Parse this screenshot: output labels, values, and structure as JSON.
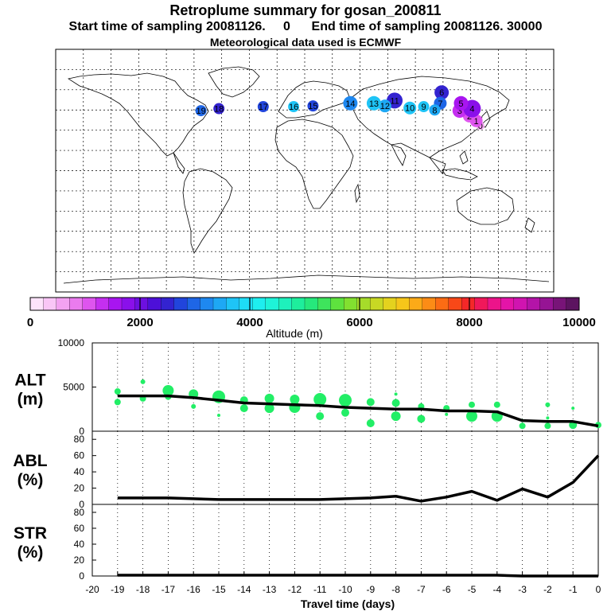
{
  "header": {
    "title": "Retroplume summary for gosan_200811",
    "sampling_line": "Start time of sampling 20081126.     0      End time of sampling 20081126. 30000",
    "meteo_line": "Meteorological data used is ECMWF"
  },
  "colorbar": {
    "label": "Altitude (m)",
    "ticks": [
      "0",
      "2000",
      "4000",
      "6000",
      "8000",
      "10000"
    ],
    "colors": [
      "#fde3fb",
      "#f9c6f6",
      "#f3a2f1",
      "#ea7bee",
      "#de55ee",
      "#c52ff0",
      "#a815f0",
      "#8a10ea",
      "#6d10e0",
      "#4d10d8",
      "#3323d0",
      "#2145dc",
      "#1e66e6",
      "#1e88f0",
      "#1ea8f4",
      "#1ec4f6",
      "#1edcf6",
      "#1eeeef",
      "#1ef3d8",
      "#1ef1bc",
      "#1eee9c",
      "#26e87c",
      "#3ee45c",
      "#5ee23e",
      "#82e030",
      "#a6dc2a",
      "#c8d824",
      "#e4d21e",
      "#f6c61a",
      "#fcaa18",
      "#fc8c16",
      "#fc6c14",
      "#f84818",
      "#f42828",
      "#f0185a",
      "#ec148a",
      "#e414a8",
      "#d014b0",
      "#b414a8",
      "#961494",
      "#781478",
      "#5c1460"
    ]
  },
  "map_markers": [
    {
      "label": "0",
      "lon": 127,
      "lat": 33.3,
      "alt": 600,
      "size": 5
    },
    {
      "label": "1",
      "lon": 124,
      "lat": 37,
      "alt": 1100,
      "size": 8
    },
    {
      "label": "2",
      "lon": 119,
      "lat": 40.5,
      "alt": 1100,
      "size": 8
    },
    {
      "label": "3",
      "lon": 112,
      "lat": 44.5,
      "alt": 1200,
      "size": 9
    },
    {
      "label": "4",
      "lon": 121,
      "lat": 46,
      "alt": 1800,
      "size": 11
    },
    {
      "label": "5",
      "lon": 113,
      "lat": 50,
      "alt": 1500,
      "size": 9
    },
    {
      "label": "6",
      "lon": 99,
      "lat": 58,
      "alt": 2600,
      "size": 9
    },
    {
      "label": "7",
      "lon": 98,
      "lat": 50,
      "alt": 3000,
      "size": 8
    },
    {
      "label": "8",
      "lon": 94,
      "lat": 45,
      "alt": 3400,
      "size": 7
    },
    {
      "label": "9",
      "lon": 86,
      "lat": 47.5,
      "alt": 3600,
      "size": 7
    },
    {
      "label": "10",
      "lon": 76,
      "lat": 46.5,
      "alt": 3700,
      "size": 8
    },
    {
      "label": "11",
      "lon": 65,
      "lat": 52,
      "alt": 2400,
      "size": 10
    },
    {
      "label": "12",
      "lon": 58,
      "lat": 48,
      "alt": 3500,
      "size": 8
    },
    {
      "label": "13",
      "lon": 50,
      "lat": 50,
      "alt": 3800,
      "size": 9
    },
    {
      "label": "14",
      "lon": 33,
      "lat": 50,
      "alt": 3200,
      "size": 9
    },
    {
      "label": "15",
      "lon": 6,
      "lat": 48,
      "alt": 2800,
      "size": 7
    },
    {
      "label": "16",
      "lon": -8,
      "lat": 47.5,
      "alt": 3700,
      "size": 7
    },
    {
      "label": "17",
      "lon": -30,
      "lat": 47.5,
      "alt": 2800,
      "size": 7
    },
    {
      "label": "18",
      "lon": -62,
      "lat": 46,
      "alt": 2500,
      "size": 7
    },
    {
      "label": "19",
      "lon": -75,
      "lat": 44.5,
      "alt": 3000,
      "size": 7
    }
  ],
  "map_grid": {
    "lon_min": -180,
    "lon_max": 180,
    "lat_min": -90,
    "lat_max": 90,
    "lon_step": 20,
    "lat_step": 15
  },
  "chart_data": [
    {
      "type": "line",
      "id": "alt",
      "ylabel": [
        "ALT",
        "(m)"
      ],
      "ylim": [
        0,
        10000
      ],
      "yticks": [
        "0",
        "5000",
        "10000"
      ],
      "x": [
        -19,
        -18,
        -17,
        -16,
        -15,
        -14,
        -13,
        -12,
        -11,
        -10,
        -9,
        -8,
        -7,
        -6,
        -5,
        -4,
        -3,
        -2,
        -1,
        0
      ],
      "values": [
        4000,
        4000,
        4000,
        3800,
        3500,
        3200,
        3100,
        3000,
        2900,
        2700,
        2600,
        2500,
        2500,
        2300,
        2300,
        2200,
        1200,
        1100,
        1100,
        600
      ],
      "scatter_points": [
        {
          "x": -19,
          "y": 4500,
          "s": 4
        },
        {
          "x": -19,
          "y": 3300,
          "s": 4
        },
        {
          "x": -18,
          "y": 5600,
          "s": 3
        },
        {
          "x": -18,
          "y": 3700,
          "s": 4
        },
        {
          "x": -17,
          "y": 4600,
          "s": 7
        },
        {
          "x": -17,
          "y": 3900,
          "s": 4
        },
        {
          "x": -16,
          "y": 4200,
          "s": 6
        },
        {
          "x": -16,
          "y": 2800,
          "s": 3
        },
        {
          "x": -15,
          "y": 3900,
          "s": 8
        },
        {
          "x": -15,
          "y": 1800,
          "s": 2
        },
        {
          "x": -14,
          "y": 3500,
          "s": 5
        },
        {
          "x": -14,
          "y": 2600,
          "s": 5
        },
        {
          "x": -13,
          "y": 3700,
          "s": 6
        },
        {
          "x": -13,
          "y": 2600,
          "s": 6
        },
        {
          "x": -12,
          "y": 3600,
          "s": 6
        },
        {
          "x": -12,
          "y": 2700,
          "s": 7
        },
        {
          "x": -11,
          "y": 3600,
          "s": 8
        },
        {
          "x": -11,
          "y": 1700,
          "s": 5
        },
        {
          "x": -10,
          "y": 3500,
          "s": 8
        },
        {
          "x": -10,
          "y": 2100,
          "s": 5
        },
        {
          "x": -9,
          "y": 3300,
          "s": 5
        },
        {
          "x": -9,
          "y": 900,
          "s": 5
        },
        {
          "x": -8,
          "y": 4200,
          "s": 2
        },
        {
          "x": -8,
          "y": 3200,
          "s": 5
        },
        {
          "x": -8,
          "y": 1700,
          "s": 6
        },
        {
          "x": -7,
          "y": 2800,
          "s": 4
        },
        {
          "x": -7,
          "y": 1400,
          "s": 5
        },
        {
          "x": -6,
          "y": 2600,
          "s": 4
        },
        {
          "x": -6,
          "y": 1900,
          "s": 2
        },
        {
          "x": -5,
          "y": 3000,
          "s": 4
        },
        {
          "x": -5,
          "y": 1700,
          "s": 7
        },
        {
          "x": -4,
          "y": 3000,
          "s": 4
        },
        {
          "x": -4,
          "y": 1700,
          "s": 7
        },
        {
          "x": -3,
          "y": 1200,
          "s": 2
        },
        {
          "x": -3,
          "y": 600,
          "s": 4
        },
        {
          "x": -2,
          "y": 3000,
          "s": 3
        },
        {
          "x": -2,
          "y": 1500,
          "s": 2
        },
        {
          "x": -2,
          "y": 600,
          "s": 4
        },
        {
          "x": -1,
          "y": 2600,
          "s": 2
        },
        {
          "x": -1,
          "y": 700,
          "s": 5
        },
        {
          "x": 0,
          "y": 700,
          "s": 4
        }
      ]
    },
    {
      "type": "line",
      "id": "abl",
      "ylabel": [
        "ABL",
        "(%)"
      ],
      "ylim": [
        0,
        90
      ],
      "yticks": [
        "0",
        "20",
        "40",
        "60",
        "80"
      ],
      "x": [
        -19,
        -18,
        -17,
        -16,
        -15,
        -14,
        -13,
        -12,
        -11,
        -10,
        -9,
        -8,
        -7,
        -6,
        -5,
        -4,
        -3,
        -2,
        -1,
        0
      ],
      "values": [
        8,
        8,
        8,
        7,
        6,
        6,
        6,
        6,
        6,
        7,
        8,
        10,
        4,
        9,
        16,
        5,
        19,
        9,
        27,
        60
      ]
    },
    {
      "type": "line",
      "id": "str",
      "ylabel": [
        "STR",
        "(%)"
      ],
      "ylim": [
        0,
        90
      ],
      "yticks": [
        "0",
        "20",
        "40",
        "60",
        "80"
      ],
      "x": [
        -19,
        -18,
        -17,
        -16,
        -15,
        -14,
        -13,
        -12,
        -11,
        -10,
        -9,
        -8,
        -7,
        -6,
        -5,
        -4,
        -3,
        -2,
        -1,
        0
      ],
      "values": [
        1,
        1,
        1,
        1,
        1,
        1,
        1,
        1,
        1,
        1,
        1,
        1,
        1,
        1,
        1,
        1,
        0,
        0,
        0,
        0
      ]
    }
  ],
  "xaxis": {
    "label": "Travel time (days)",
    "ticks": [
      "-20",
      "-19",
      "-18",
      "-17",
      "-16",
      "-15",
      "-14",
      "-13",
      "-12",
      "-11",
      "-10",
      "-9",
      "-8",
      "-7",
      "-6",
      "-5",
      "-4",
      "-3",
      "-2",
      "-1",
      "0"
    ]
  }
}
